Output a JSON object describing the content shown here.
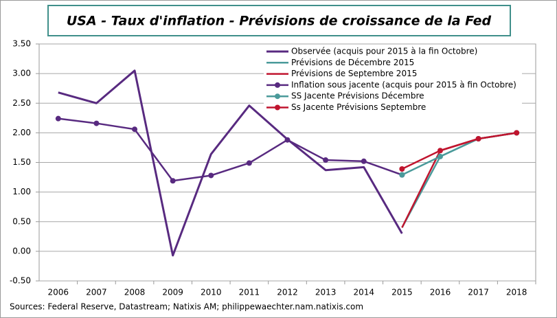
{
  "chart_data": {
    "type": "line",
    "title": "USA - Taux d'inflation - Prévisions de croissance de la Fed",
    "source": "Sources: Federal Reserve, Datastream; Natixis AM; philippewaechter.nam.natixis.com",
    "categories": [
      "2006",
      "2007",
      "2008",
      "2009",
      "2010",
      "2011",
      "2012",
      "2013",
      "2014",
      "2015",
      "2016",
      "2017",
      "2018"
    ],
    "ylim": [
      -0.5,
      3.5
    ],
    "yticks": [
      {
        "value": -0.5,
        "label": "-0.50"
      },
      {
        "value": 0,
        "label": "0.00"
      },
      {
        "value": 0.5,
        "label": "0.50"
      },
      {
        "value": 1,
        "label": "1.00"
      },
      {
        "value": 1.5,
        "label": "1.50"
      },
      {
        "value": 2,
        "label": "2.00"
      },
      {
        "value": 2.5,
        "label": "2.50"
      },
      {
        "value": 3,
        "label": "3.00"
      },
      {
        "value": 3.5,
        "label": "3.50"
      }
    ],
    "grid": true,
    "legend": "top-right",
    "series": [
      {
        "name": "Observée (acquis pour 2015 à la fin Octobre)",
        "color": "#582a80",
        "marker": false,
        "width": 3,
        "values": [
          2.68,
          2.5,
          3.05,
          -0.07,
          1.64,
          2.46,
          1.89,
          1.37,
          1.42,
          0.3,
          null,
          null,
          null
        ]
      },
      {
        "name": "Prévisions de Décembre 2015",
        "color": "#4a9a9a",
        "marker": false,
        "width": 2.5,
        "values": [
          null,
          null,
          null,
          null,
          null,
          null,
          null,
          null,
          null,
          0.4,
          1.6,
          1.9,
          2.0
        ]
      },
      {
        "name": "Prévisions de Septembre 2015",
        "color": "#c0142e",
        "marker": false,
        "width": 2.5,
        "values": [
          null,
          null,
          null,
          null,
          null,
          null,
          null,
          null,
          null,
          0.4,
          1.7,
          1.9,
          2.0
        ]
      },
      {
        "name": "Inflation sous jacente (acquis pour 2015 à fin Octobre)",
        "color": "#582a80",
        "marker": true,
        "width": 2.5,
        "values": [
          2.24,
          2.16,
          2.06,
          1.19,
          1.28,
          1.49,
          1.88,
          1.54,
          1.52,
          1.29,
          null,
          null,
          null
        ]
      },
      {
        "name": "SS Jacente Prévisions Décembre",
        "color": "#4a9a9a",
        "marker": true,
        "width": 2.5,
        "values": [
          null,
          null,
          null,
          null,
          null,
          null,
          null,
          null,
          null,
          1.29,
          1.6,
          1.9,
          2.0
        ]
      },
      {
        "name": "Ss Jacente Prévisions Septembre",
        "color": "#c0142e",
        "marker": true,
        "width": 2.5,
        "values": [
          null,
          null,
          null,
          null,
          null,
          null,
          null,
          null,
          null,
          1.39,
          1.7,
          1.9,
          2.0
        ]
      }
    ]
  }
}
